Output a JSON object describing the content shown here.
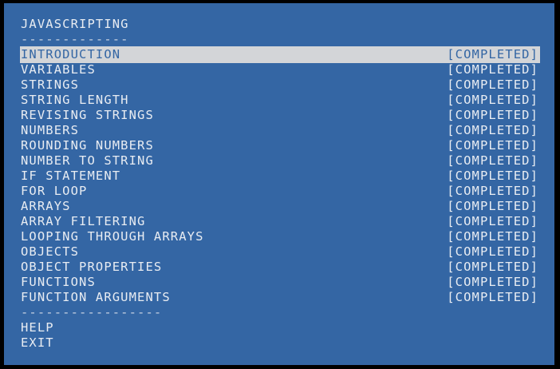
{
  "title": "JAVASCRIPTING",
  "title_divider": "-------------",
  "menu": {
    "selected_index": 0,
    "items": [
      {
        "label": "INTRODUCTION",
        "status": "[COMPLETED]"
      },
      {
        "label": "VARIABLES",
        "status": "[COMPLETED]"
      },
      {
        "label": "STRINGS",
        "status": "[COMPLETED]"
      },
      {
        "label": "STRING LENGTH",
        "status": "[COMPLETED]"
      },
      {
        "label": "REVISING STRINGS",
        "status": "[COMPLETED]"
      },
      {
        "label": "NUMBERS",
        "status": "[COMPLETED]"
      },
      {
        "label": "ROUNDING NUMBERS",
        "status": "[COMPLETED]"
      },
      {
        "label": "NUMBER TO STRING",
        "status": "[COMPLETED]"
      },
      {
        "label": "IF STATEMENT",
        "status": "[COMPLETED]"
      },
      {
        "label": "FOR LOOP",
        "status": "[COMPLETED]"
      },
      {
        "label": "ARRAYS",
        "status": "[COMPLETED]"
      },
      {
        "label": "ARRAY FILTERING",
        "status": "[COMPLETED]"
      },
      {
        "label": "LOOPING THROUGH ARRAYS",
        "status": "[COMPLETED]"
      },
      {
        "label": "OBJECTS",
        "status": "[COMPLETED]"
      },
      {
        "label": "OBJECT PROPERTIES",
        "status": "[COMPLETED]"
      },
      {
        "label": "FUNCTIONS",
        "status": "[COMPLETED]"
      },
      {
        "label": "FUNCTION ARGUMENTS",
        "status": "[COMPLETED]"
      }
    ]
  },
  "footer_divider": "-----------------",
  "actions": {
    "help_label": "HELP",
    "exit_label": "EXIT"
  },
  "colors": {
    "background": "#3466a4",
    "text": "#e8ecf2",
    "highlight": "#d3d5d8",
    "border": "#000000"
  }
}
